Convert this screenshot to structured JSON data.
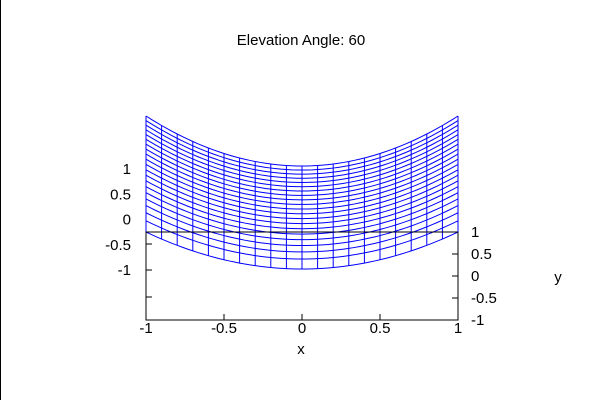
{
  "chart_data": {
    "type": "surface-3d-wireframe",
    "title": "Elevation Angle: 60",
    "xlabel": "x",
    "ylabel": "y",
    "zlabel": "",
    "x_ticks": [
      "-1",
      "-0.5",
      "0",
      "0.5",
      "1"
    ],
    "y_ticks": [
      "-1",
      "-0.5",
      "0",
      "0.5",
      "1"
    ],
    "z_ticks": [
      "-1",
      "-0.5",
      "0",
      "0.5",
      "1"
    ],
    "xlim": [
      -1,
      1
    ],
    "ylim": [
      -1,
      1
    ],
    "zlim": [
      -1,
      1.2
    ],
    "grid": false,
    "elevation_deg": 60,
    "surface_color": "#0000ff",
    "mesh": {
      "x_lines": 21,
      "y_lines": 21
    },
    "surface": {
      "x": [
        -1.0,
        -0.9,
        -0.8,
        -0.7,
        -0.6,
        -0.5,
        -0.4,
        -0.3,
        -0.2,
        -0.1,
        0.0,
        0.1,
        0.2,
        0.3,
        0.4,
        0.5,
        0.6,
        0.7,
        0.8,
        0.9,
        1.0
      ],
      "z_front_edge": [
        -0.1,
        -0.2,
        -0.3,
        -0.4,
        -0.5,
        -0.6,
        -0.7,
        -0.8,
        -0.88,
        -0.95,
        -1.0,
        -0.95,
        -0.88,
        -0.8,
        -0.7,
        -0.6,
        -0.5,
        -0.4,
        -0.3,
        -0.2,
        -0.1
      ],
      "z_back_edge": [
        1.9,
        1.8,
        1.7,
        1.6,
        1.5,
        1.4,
        1.3,
        1.2,
        1.12,
        1.05,
        1.0,
        1.05,
        1.12,
        1.2,
        1.3,
        1.4,
        1.5,
        1.6,
        1.7,
        1.8,
        1.9
      ]
    }
  }
}
